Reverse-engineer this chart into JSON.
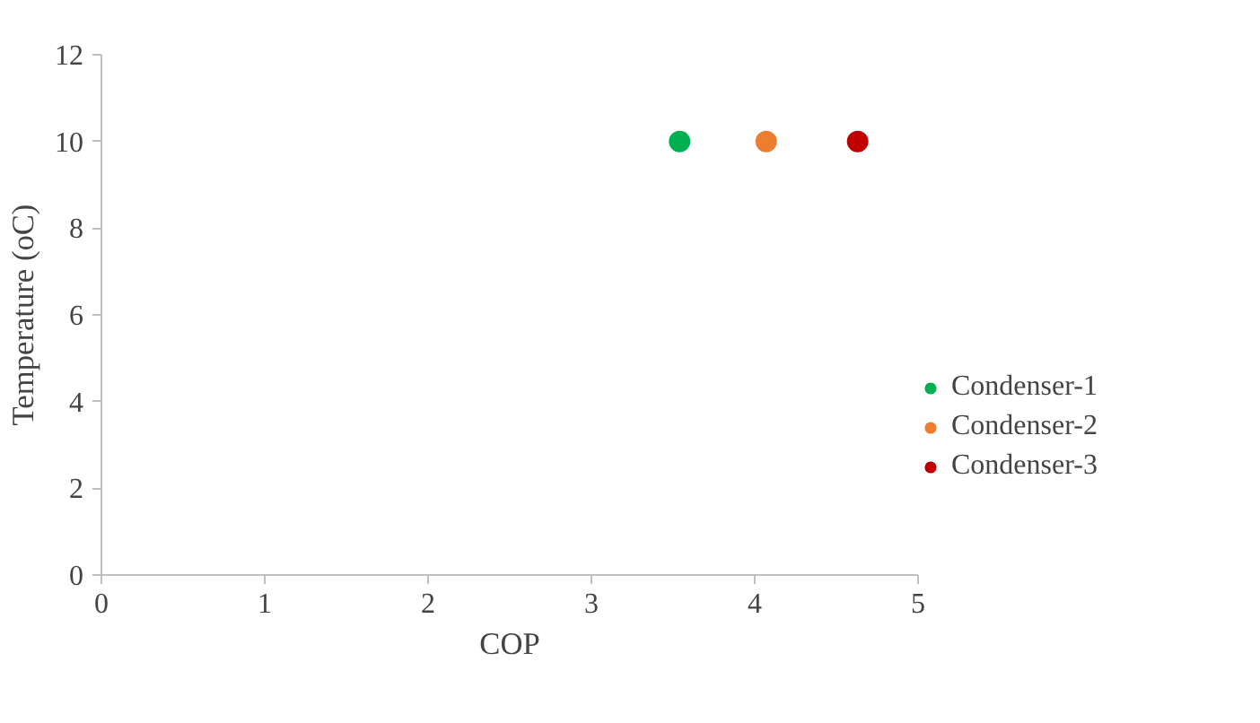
{
  "chart_data": {
    "type": "scatter",
    "xlabel": "COP",
    "ylabel": "Temperature (oC)",
    "xlim": [
      0,
      5
    ],
    "ylim": [
      0,
      12
    ],
    "xticks": [
      0,
      1,
      2,
      3,
      4,
      5
    ],
    "yticks": [
      0,
      2,
      4,
      6,
      8,
      10,
      12
    ],
    "grid": false,
    "legend": "right",
    "marker": "circle",
    "series": [
      {
        "name": "Condenser-1",
        "color": "#00b050",
        "x": [
          3.54
        ],
        "values": [
          10
        ]
      },
      {
        "name": "Condenser-2",
        "color": "#ed7d31",
        "x": [
          4.07
        ],
        "values": [
          10
        ]
      },
      {
        "name": "Condenser-3",
        "color": "#c00000",
        "x": [
          4.63
        ],
        "values": [
          10
        ]
      }
    ]
  }
}
